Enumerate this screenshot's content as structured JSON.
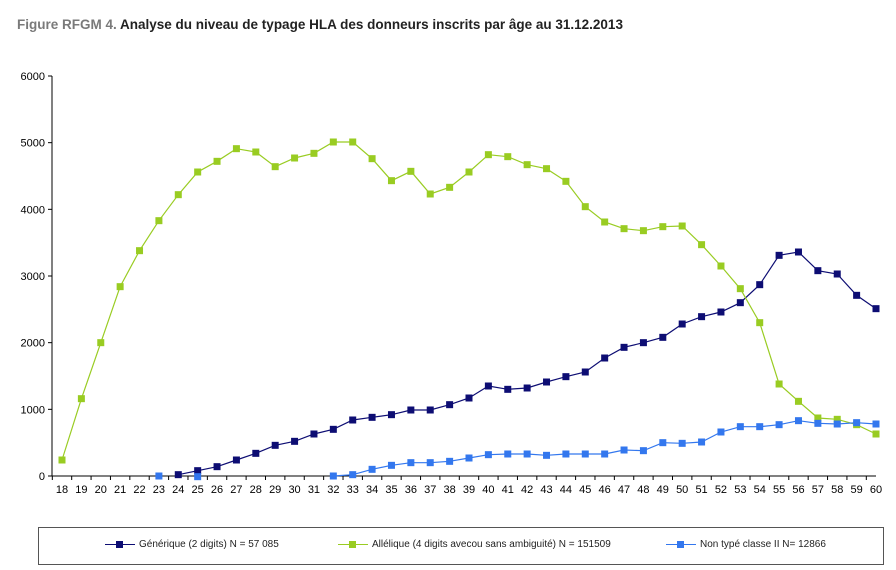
{
  "title": {
    "prefix": "Figure RFGM 4.",
    "text": "Analyse du niveau de typage HLA des donneurs inscrits par âge au 31.12.2013"
  },
  "colors": {
    "generic": "#0d0d73",
    "allelic": "#99cc22",
    "untyped": "#3377ee",
    "axis": "#000000"
  },
  "chart_data": {
    "type": "line",
    "title": "Analyse du niveau de typage HLA des donneurs inscrits par âge au 31.12.2013",
    "xlabel": "",
    "ylabel": "",
    "ylim": [
      0,
      6000
    ],
    "yticks": [
      0,
      1000,
      2000,
      3000,
      4000,
      5000,
      6000
    ],
    "grid": false,
    "legend_position": "bottom",
    "categories": [
      "18",
      "19",
      "20",
      "21",
      "22",
      "23",
      "24",
      "25",
      "26",
      "27",
      "28",
      "29",
      "30",
      "31",
      "32",
      "33",
      "34",
      "35",
      "36",
      "37",
      "38",
      "39",
      "40",
      "41",
      "42",
      "43",
      "44",
      "45",
      "46",
      "47",
      "48",
      "49",
      "50",
      "51",
      "52",
      "53",
      "54",
      "55",
      "56",
      "57",
      "58",
      "59",
      "60"
    ],
    "series": [
      {
        "name": "Générique (2 digits) N = 57 085",
        "color": "#0d0d73",
        "values": [
          null,
          null,
          null,
          null,
          null,
          null,
          20,
          80,
          140,
          240,
          340,
          460,
          520,
          630,
          700,
          840,
          880,
          920,
          990,
          990,
          1070,
          1170,
          1350,
          1300,
          1320,
          1410,
          1490,
          1560,
          1770,
          1930,
          2000,
          2080,
          2280,
          2390,
          2460,
          2600,
          2870,
          3310,
          3360,
          3080,
          3030,
          2710,
          2510
        ]
      },
      {
        "name": "Allélique (4 digits avec ou sans ambiguité) N = 151509",
        "color": "#99cc22",
        "values": [
          240,
          1160,
          2000,
          2840,
          3380,
          3830,
          4220,
          4560,
          4720,
          4910,
          4860,
          4640,
          4770,
          4840,
          5010,
          5010,
          4760,
          4430,
          4570,
          4230,
          4330,
          4560,
          4820,
          4790,
          4670,
          4610,
          4420,
          4040,
          3810,
          3710,
          3680,
          3740,
          3750,
          3470,
          3150,
          2810,
          2300,
          1380,
          1120,
          870,
          850,
          770,
          630
        ]
      },
      {
        "name": "Non typé classe II N= 12866",
        "color": "#3377ee",
        "values": [
          null,
          null,
          null,
          null,
          null,
          0,
          null,
          -10,
          null,
          null,
          null,
          null,
          null,
          null,
          0,
          20,
          100,
          160,
          200,
          200,
          220,
          270,
          320,
          330,
          330,
          310,
          330,
          330,
          330,
          390,
          380,
          500,
          490,
          510,
          660,
          740,
          740,
          770,
          830,
          790,
          780,
          800,
          780
        ]
      }
    ]
  },
  "legend": {
    "items": [
      {
        "label": "Générique (2 digits) N = 57 085"
      },
      {
        "label": "Allélique (4 digits avecou sans ambiguité) N = 151509"
      },
      {
        "label": "Non typé classe II N= 12866"
      }
    ]
  }
}
